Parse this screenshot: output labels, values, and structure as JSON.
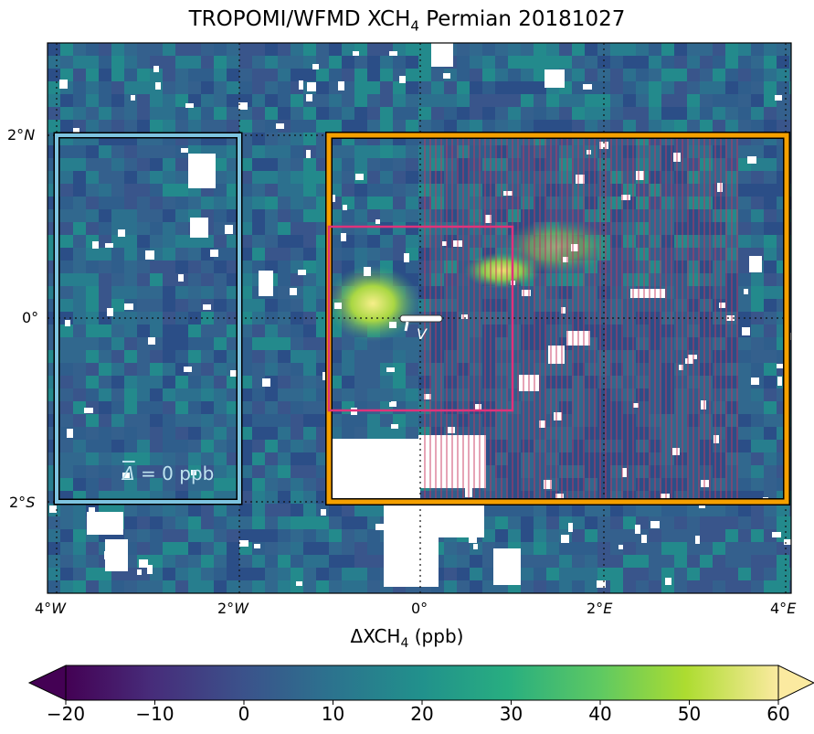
{
  "title": "TROPOMI/WFMD XCH4 Permian 20181027",
  "title_parts": {
    "pre": "TROPOMI/WFMD XCH",
    "sub": "4",
    "post": " Permian 20181027"
  },
  "axes": {
    "x_ticks": [
      {
        "num": "4°",
        "dir": "W"
      },
      {
        "num": "2°",
        "dir": "W"
      },
      {
        "num": "0°",
        "dir": ""
      },
      {
        "num": "2°",
        "dir": "E"
      },
      {
        "num": "4°",
        "dir": "E"
      }
    ],
    "y_ticks": [
      {
        "num": "2°",
        "dir": "N"
      },
      {
        "num": "0°",
        "dir": ""
      },
      {
        "num": "2°",
        "dir": "S"
      }
    ],
    "xlim_deg": [
      -4,
      4
    ],
    "ylim_deg": [
      -3,
      3
    ],
    "grid": "dotted"
  },
  "colorbar": {
    "label_pre": "ΔXCH",
    "label_sub": "4",
    "label_post": " (ppb)",
    "ticks": [
      "−20",
      "−10",
      "0",
      "10",
      "20",
      "30",
      "40",
      "50",
      "60"
    ],
    "range": [
      -20,
      60
    ],
    "colormap": "viridis-like (extend both)"
  },
  "annotations": {
    "background_box_text": "= 0 ppb",
    "background_box_symbol": "Δ",
    "wind_label": "V"
  },
  "colors": {
    "background_box": "#7ec4e0",
    "source_box": "#f5a000",
    "inner_box": "#e0327a",
    "hatching": "#c8325a"
  },
  "regions_deg": {
    "background_box": {
      "lon": [
        -4,
        -2
      ],
      "lat": [
        -2,
        2
      ]
    },
    "source_box": {
      "lon": [
        -1,
        4
      ],
      "lat": [
        -2,
        2
      ]
    },
    "inner_box": {
      "lon": [
        -1,
        1
      ],
      "lat": [
        -1,
        1
      ]
    }
  }
}
